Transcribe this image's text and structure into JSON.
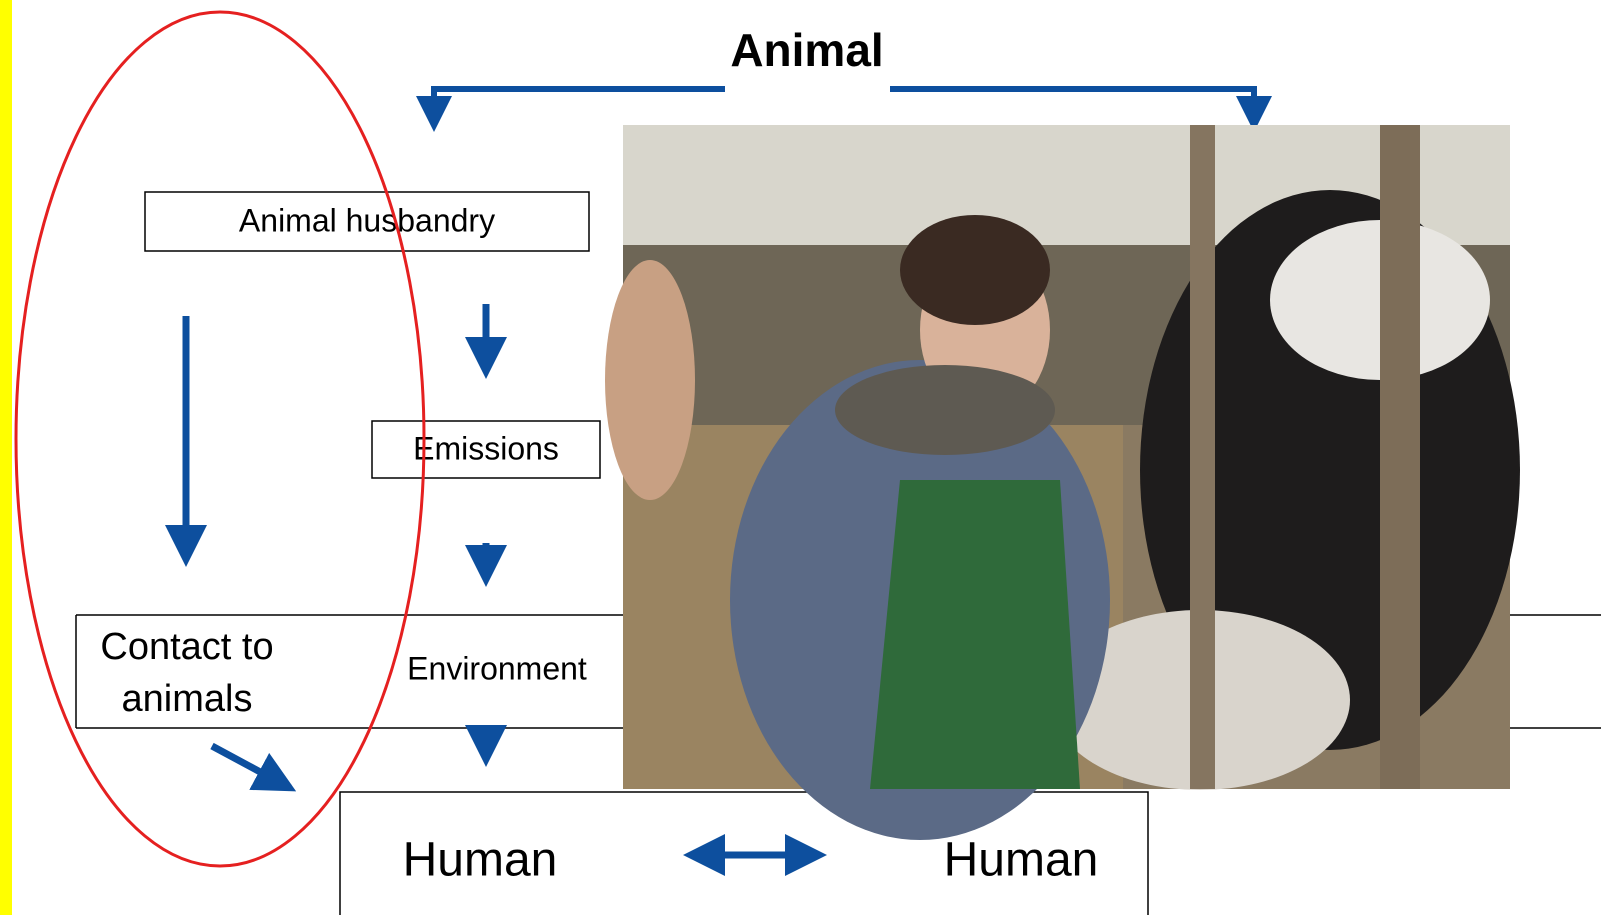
{
  "title": "Animal",
  "nodes": [
    {
      "label": "Animal husbandry"
    },
    {
      "label": "Emissions"
    },
    {
      "label": "Environment"
    },
    {
      "label": [
        "Contact to",
        "animals"
      ]
    },
    {
      "label": "Human"
    },
    {
      "label": "Human"
    }
  ]
}
